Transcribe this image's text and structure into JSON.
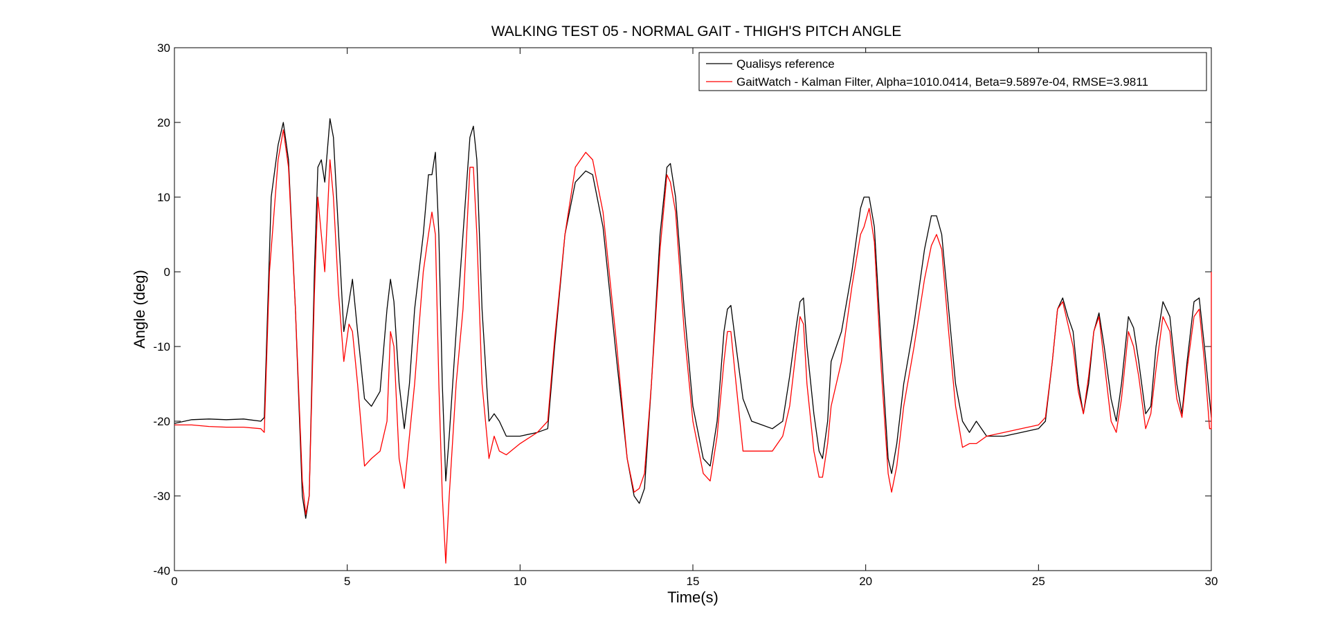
{
  "chart_data": {
    "type": "line",
    "title": "WALKING TEST 05 - NORMAL GAIT - THIGH'S PITCH ANGLE",
    "xlabel": "Time(s)",
    "ylabel": "Angle (deg)",
    "xlim": [
      0,
      30
    ],
    "ylim": [
      -40,
      30
    ],
    "xticks": [
      0,
      5,
      10,
      15,
      20,
      25,
      30
    ],
    "yticks": [
      -40,
      -30,
      -20,
      -10,
      0,
      10,
      20,
      30
    ],
    "xtick_labels": [
      "0",
      "5",
      "10",
      "15",
      "20",
      "25",
      "30"
    ],
    "ytick_labels": [
      "-40",
      "-30",
      "-20",
      "-10",
      "0",
      "10",
      "20",
      "30"
    ],
    "grid": false,
    "legend_position": "top-right",
    "series": [
      {
        "name": "Qualisys reference",
        "color": "#000000",
        "points": [
          [
            0,
            -20.3
          ],
          [
            0.5,
            -19.8
          ],
          [
            1,
            -19.7
          ],
          [
            1.5,
            -19.8
          ],
          [
            2,
            -19.7
          ],
          [
            2.5,
            -20.0
          ],
          [
            2.6,
            -19.5
          ],
          [
            2.8,
            10
          ],
          [
            3.0,
            17
          ],
          [
            3.15,
            20
          ],
          [
            3.3,
            15
          ],
          [
            3.5,
            -5
          ],
          [
            3.7,
            -30
          ],
          [
            3.8,
            -33
          ],
          [
            3.9,
            -30
          ],
          [
            4.05,
            0
          ],
          [
            4.15,
            14
          ],
          [
            4.25,
            15
          ],
          [
            4.35,
            12
          ],
          [
            4.5,
            20.5
          ],
          [
            4.6,
            18
          ],
          [
            4.75,
            5
          ],
          [
            4.9,
            -8
          ],
          [
            5.05,
            -4
          ],
          [
            5.15,
            -1
          ],
          [
            5.3,
            -8
          ],
          [
            5.5,
            -17
          ],
          [
            5.7,
            -18
          ],
          [
            5.95,
            -16
          ],
          [
            6.15,
            -5
          ],
          [
            6.25,
            -1
          ],
          [
            6.35,
            -4
          ],
          [
            6.5,
            -15
          ],
          [
            6.65,
            -21
          ],
          [
            6.8,
            -15
          ],
          [
            6.95,
            -5
          ],
          [
            7.2,
            5
          ],
          [
            7.35,
            13
          ],
          [
            7.45,
            13
          ],
          [
            7.55,
            16
          ],
          [
            7.65,
            5
          ],
          [
            7.75,
            -15
          ],
          [
            7.85,
            -28
          ],
          [
            7.95,
            -22
          ],
          [
            8.15,
            -8
          ],
          [
            8.35,
            5
          ],
          [
            8.55,
            18
          ],
          [
            8.65,
            19.5
          ],
          [
            8.75,
            15
          ],
          [
            8.9,
            -5
          ],
          [
            9.1,
            -20
          ],
          [
            9.25,
            -19
          ],
          [
            9.4,
            -20
          ],
          [
            9.6,
            -22
          ],
          [
            10,
            -22
          ],
          [
            10.5,
            -21.5
          ],
          [
            10.8,
            -21
          ],
          [
            11.0,
            -10
          ],
          [
            11.3,
            5
          ],
          [
            11.6,
            12
          ],
          [
            11.9,
            13.5
          ],
          [
            12.1,
            13
          ],
          [
            12.4,
            6
          ],
          [
            12.8,
            -12
          ],
          [
            13.1,
            -25
          ],
          [
            13.3,
            -30
          ],
          [
            13.45,
            -31
          ],
          [
            13.6,
            -29
          ],
          [
            13.8,
            -15
          ],
          [
            14.05,
            5
          ],
          [
            14.25,
            14
          ],
          [
            14.35,
            14.5
          ],
          [
            14.5,
            10
          ],
          [
            14.75,
            -5
          ],
          [
            15.0,
            -18
          ],
          [
            15.3,
            -25
          ],
          [
            15.5,
            -26
          ],
          [
            15.7,
            -20
          ],
          [
            15.9,
            -8
          ],
          [
            16.0,
            -5
          ],
          [
            16.1,
            -4.5
          ],
          [
            16.25,
            -10
          ],
          [
            16.45,
            -17
          ],
          [
            16.7,
            -20
          ],
          [
            17.0,
            -20.5
          ],
          [
            17.3,
            -21
          ],
          [
            17.6,
            -20
          ],
          [
            17.8,
            -14
          ],
          [
            18.0,
            -7
          ],
          [
            18.1,
            -4
          ],
          [
            18.2,
            -3.5
          ],
          [
            18.3,
            -10
          ],
          [
            18.5,
            -19
          ],
          [
            18.65,
            -24
          ],
          [
            18.75,
            -25
          ],
          [
            18.9,
            -20
          ],
          [
            19.0,
            -12
          ],
          [
            19.3,
            -8
          ],
          [
            19.6,
            0
          ],
          [
            19.85,
            8.5
          ],
          [
            19.95,
            10
          ],
          [
            20.1,
            10
          ],
          [
            20.25,
            6
          ],
          [
            20.45,
            -10
          ],
          [
            20.65,
            -25
          ],
          [
            20.75,
            -27
          ],
          [
            20.9,
            -23
          ],
          [
            21.1,
            -15
          ],
          [
            21.4,
            -7
          ],
          [
            21.7,
            3
          ],
          [
            21.9,
            7.5
          ],
          [
            22.05,
            7.5
          ],
          [
            22.2,
            5
          ],
          [
            22.4,
            -5
          ],
          [
            22.6,
            -15
          ],
          [
            22.8,
            -20
          ],
          [
            23.0,
            -21.5
          ],
          [
            23.2,
            -20
          ],
          [
            23.5,
            -22
          ],
          [
            24.0,
            -22
          ],
          [
            24.5,
            -21.5
          ],
          [
            25.0,
            -21
          ],
          [
            25.2,
            -20
          ],
          [
            25.4,
            -12
          ],
          [
            25.55,
            -5
          ],
          [
            25.7,
            -3.5
          ],
          [
            25.85,
            -6
          ],
          [
            26.0,
            -8
          ],
          [
            26.15,
            -15
          ],
          [
            26.3,
            -19
          ],
          [
            26.45,
            -15
          ],
          [
            26.6,
            -8
          ],
          [
            26.75,
            -5.5
          ],
          [
            26.9,
            -10
          ],
          [
            27.1,
            -17
          ],
          [
            27.25,
            -20
          ],
          [
            27.4,
            -15
          ],
          [
            27.6,
            -6
          ],
          [
            27.75,
            -7.5
          ],
          [
            27.9,
            -12
          ],
          [
            28.1,
            -19
          ],
          [
            28.25,
            -18
          ],
          [
            28.4,
            -10
          ],
          [
            28.6,
            -4
          ],
          [
            28.8,
            -6
          ],
          [
            29.0,
            -15
          ],
          [
            29.15,
            -19
          ],
          [
            29.3,
            -12
          ],
          [
            29.5,
            -4
          ],
          [
            29.65,
            -3.5
          ],
          [
            29.8,
            -10
          ],
          [
            30.0,
            -19.5
          ]
        ]
      },
      {
        "name": "GaitWatch - Kalman Filter, Alpha=1010.0414, Beta=9.5897e-04, RMSE=3.9811",
        "color": "#ff0000",
        "points": [
          [
            0,
            -20.5
          ],
          [
            0.5,
            -20.5
          ],
          [
            1,
            -20.7
          ],
          [
            1.5,
            -20.8
          ],
          [
            2,
            -20.8
          ],
          [
            2.5,
            -21.0
          ],
          [
            2.6,
            -21.5
          ],
          [
            2.75,
            0
          ],
          [
            3.0,
            15
          ],
          [
            3.15,
            19
          ],
          [
            3.3,
            14
          ],
          [
            3.5,
            -5
          ],
          [
            3.7,
            -28
          ],
          [
            3.8,
            -32.5
          ],
          [
            3.9,
            -30
          ],
          [
            4.05,
            -3
          ],
          [
            4.15,
            10
          ],
          [
            4.25,
            5
          ],
          [
            4.35,
            0
          ],
          [
            4.5,
            15
          ],
          [
            4.6,
            10
          ],
          [
            4.75,
            -3
          ],
          [
            4.9,
            -12
          ],
          [
            5.05,
            -7
          ],
          [
            5.15,
            -8
          ],
          [
            5.3,
            -15
          ],
          [
            5.5,
            -26
          ],
          [
            5.7,
            -25
          ],
          [
            5.95,
            -24
          ],
          [
            6.15,
            -20
          ],
          [
            6.25,
            -8
          ],
          [
            6.35,
            -10
          ],
          [
            6.5,
            -25
          ],
          [
            6.65,
            -29
          ],
          [
            6.8,
            -22
          ],
          [
            6.95,
            -15
          ],
          [
            7.2,
            0
          ],
          [
            7.35,
            5
          ],
          [
            7.45,
            8
          ],
          [
            7.55,
            5
          ],
          [
            7.65,
            -15
          ],
          [
            7.75,
            -30
          ],
          [
            7.85,
            -39
          ],
          [
            7.95,
            -30
          ],
          [
            8.15,
            -15
          ],
          [
            8.35,
            -5
          ],
          [
            8.55,
            14
          ],
          [
            8.65,
            14
          ],
          [
            8.75,
            5
          ],
          [
            8.9,
            -15
          ],
          [
            9.1,
            -25
          ],
          [
            9.25,
            -22
          ],
          [
            9.4,
            -24
          ],
          [
            9.6,
            -24.5
          ],
          [
            10,
            -23
          ],
          [
            10.5,
            -21.5
          ],
          [
            10.8,
            -20
          ],
          [
            11.0,
            -9
          ],
          [
            11.3,
            5
          ],
          [
            11.6,
            14
          ],
          [
            11.9,
            16
          ],
          [
            12.1,
            15
          ],
          [
            12.4,
            8
          ],
          [
            12.8,
            -10
          ],
          [
            13.1,
            -25
          ],
          [
            13.3,
            -29.5
          ],
          [
            13.45,
            -29
          ],
          [
            13.6,
            -27
          ],
          [
            13.8,
            -15
          ],
          [
            14.05,
            3
          ],
          [
            14.25,
            13
          ],
          [
            14.35,
            12
          ],
          [
            14.5,
            8
          ],
          [
            14.75,
            -8
          ],
          [
            15.0,
            -20
          ],
          [
            15.3,
            -27
          ],
          [
            15.5,
            -28
          ],
          [
            15.7,
            -22
          ],
          [
            15.9,
            -12
          ],
          [
            16.0,
            -8
          ],
          [
            16.1,
            -8
          ],
          [
            16.25,
            -15
          ],
          [
            16.45,
            -24
          ],
          [
            16.7,
            -24
          ],
          [
            17.0,
            -24
          ],
          [
            17.3,
            -24
          ],
          [
            17.6,
            -22
          ],
          [
            17.8,
            -18
          ],
          [
            18.0,
            -10
          ],
          [
            18.1,
            -6
          ],
          [
            18.2,
            -7
          ],
          [
            18.3,
            -15
          ],
          [
            18.5,
            -24
          ],
          [
            18.65,
            -27.5
          ],
          [
            18.75,
            -27.5
          ],
          [
            18.9,
            -23
          ],
          [
            19.0,
            -18
          ],
          [
            19.3,
            -12
          ],
          [
            19.6,
            -2
          ],
          [
            19.85,
            5
          ],
          [
            19.95,
            6
          ],
          [
            20.1,
            8.5
          ],
          [
            20.25,
            4
          ],
          [
            20.45,
            -13
          ],
          [
            20.65,
            -27
          ],
          [
            20.75,
            -29.5
          ],
          [
            20.9,
            -26
          ],
          [
            21.1,
            -18
          ],
          [
            21.4,
            -10
          ],
          [
            21.7,
            -1
          ],
          [
            21.9,
            3.5
          ],
          [
            22.05,
            5
          ],
          [
            22.2,
            3
          ],
          [
            22.4,
            -8
          ],
          [
            22.6,
            -18
          ],
          [
            22.8,
            -23.5
          ],
          [
            23.0,
            -23
          ],
          [
            23.2,
            -23
          ],
          [
            23.5,
            -22
          ],
          [
            24.0,
            -21.5
          ],
          [
            24.5,
            -21
          ],
          [
            25.0,
            -20.5
          ],
          [
            25.2,
            -19.5
          ],
          [
            25.4,
            -12
          ],
          [
            25.55,
            -5
          ],
          [
            25.7,
            -4
          ],
          [
            25.85,
            -7
          ],
          [
            26.0,
            -10
          ],
          [
            26.15,
            -16
          ],
          [
            26.3,
            -19
          ],
          [
            26.45,
            -14
          ],
          [
            26.6,
            -8
          ],
          [
            26.75,
            -6
          ],
          [
            26.9,
            -12
          ],
          [
            27.1,
            -20
          ],
          [
            27.25,
            -21.5
          ],
          [
            27.4,
            -17
          ],
          [
            27.6,
            -8
          ],
          [
            27.75,
            -10
          ],
          [
            27.9,
            -14
          ],
          [
            28.1,
            -21
          ],
          [
            28.25,
            -19
          ],
          [
            28.4,
            -13
          ],
          [
            28.6,
            -6
          ],
          [
            28.8,
            -8
          ],
          [
            29.0,
            -17
          ],
          [
            29.15,
            -19.5
          ],
          [
            29.3,
            -13
          ],
          [
            29.5,
            -6
          ],
          [
            29.65,
            -5
          ],
          [
            29.8,
            -12
          ],
          [
            29.95,
            -21
          ],
          [
            30.0,
            -21
          ],
          [
            30.0,
            0
          ]
        ]
      }
    ]
  }
}
